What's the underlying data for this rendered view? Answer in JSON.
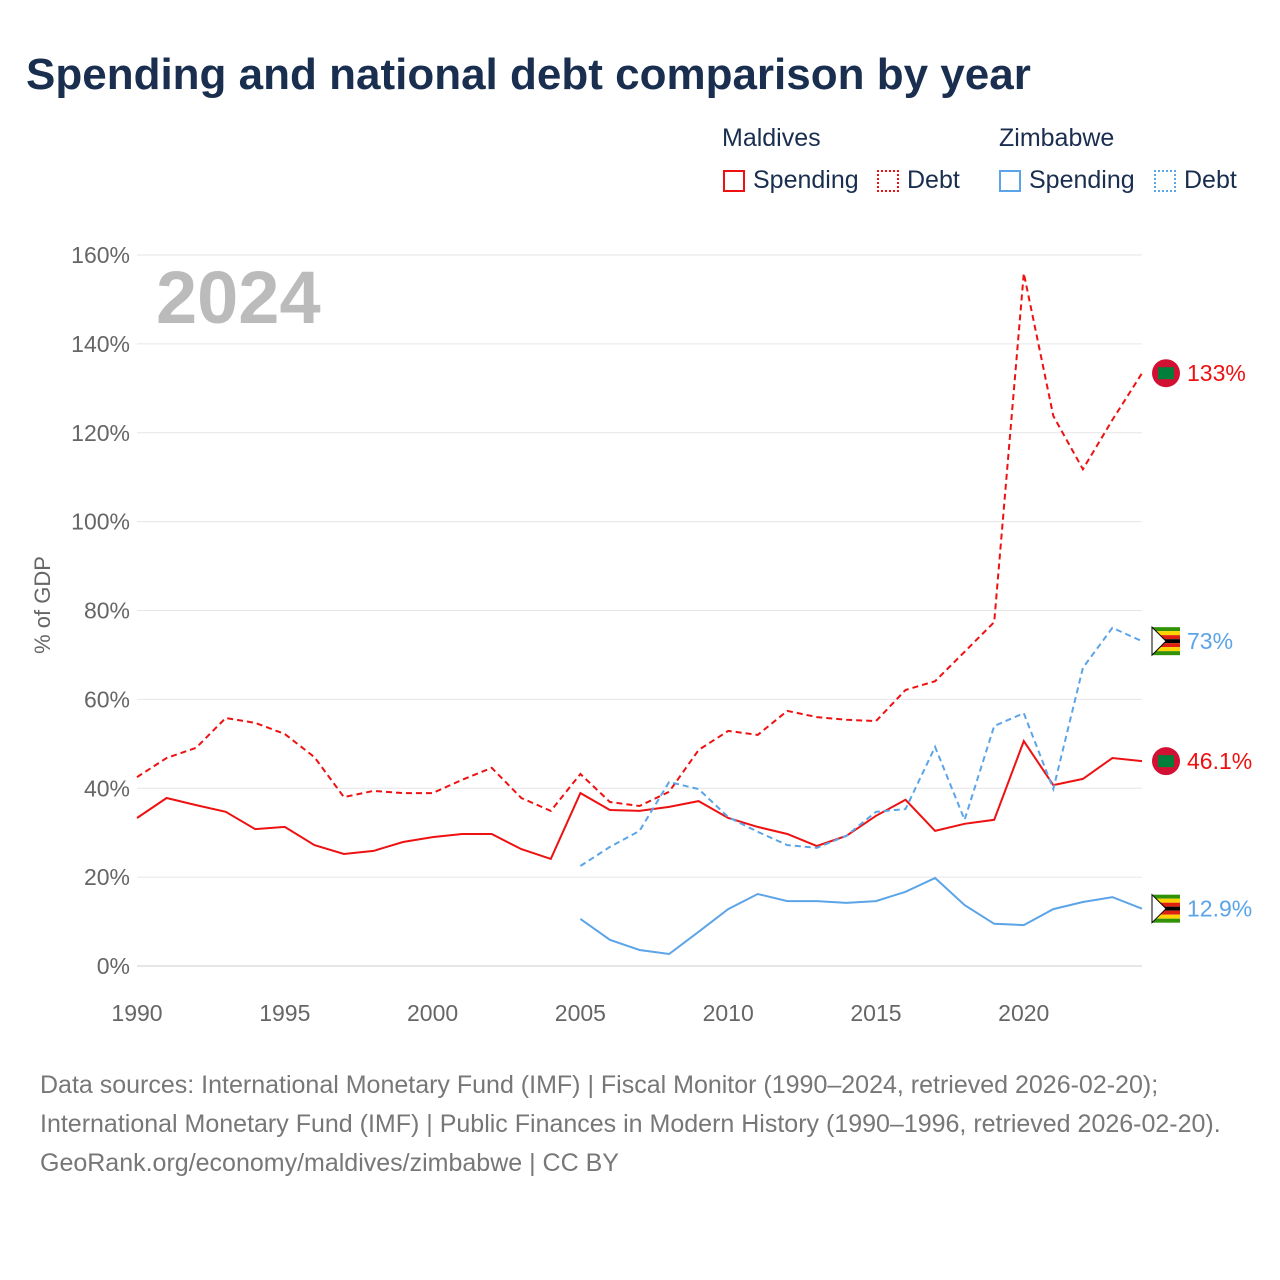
{
  "chart_data": {
    "type": "line",
    "title": "Spending and national debt comparison by year",
    "ylabel": "% of GDP",
    "ylim": [
      0,
      160
    ],
    "xlim": [
      1990,
      2024
    ],
    "yticks": [
      "0%",
      "20%",
      "40%",
      "60%",
      "80%",
      "100%",
      "120%",
      "140%",
      "160%"
    ],
    "ytick_values": [
      0,
      20,
      40,
      60,
      80,
      100,
      120,
      140,
      160
    ],
    "xticks": [
      "1990",
      "1995",
      "2000",
      "2005",
      "2010",
      "2015",
      "2020"
    ],
    "xtick_values": [
      1990,
      1995,
      2000,
      2005,
      2010,
      2015,
      2020
    ],
    "year_label": "2024",
    "grid": true,
    "legend": {
      "groups": [
        {
          "name": "Maldives",
          "items": [
            "Spending",
            "Debt"
          ]
        },
        {
          "name": "Zimbabwe",
          "items": [
            "Spending",
            "Debt"
          ]
        }
      ]
    },
    "series": [
      {
        "name": "Maldives Spending",
        "country": "Maldives",
        "color": "#ee1111",
        "dash": false,
        "start": 1990,
        "values": [
          33.3,
          37.8,
          36.2,
          34.7,
          30.8,
          31.3,
          27.2,
          25.2,
          25.9,
          27.9,
          29.0,
          29.7,
          29.7,
          26.3,
          24.1,
          38.9,
          35.1,
          34.9,
          35.8,
          37.1,
          33.3,
          31.3,
          29.7,
          27.0,
          29.3,
          33.8,
          37.4,
          30.4,
          32.0,
          32.9,
          50.6,
          40.7,
          42.1,
          46.8,
          46.1
        ],
        "end_label": "46.1%"
      },
      {
        "name": "Maldives Debt",
        "country": "Maldives",
        "color": "#ee1111",
        "dash": true,
        "start": 1990,
        "values": [
          42.5,
          46.8,
          49.1,
          55.8,
          54.7,
          52.2,
          47.0,
          38.0,
          39.4,
          38.9,
          38.9,
          41.9,
          44.6,
          37.8,
          34.9,
          43.2,
          36.9,
          36.0,
          39.2,
          48.6,
          52.9,
          52.0,
          57.4,
          56.0,
          55.4,
          55.1,
          62.1,
          64.1,
          70.7,
          77.4,
          155.9,
          123.8,
          111.8,
          122.9,
          133.4
        ],
        "end_label": "133%"
      },
      {
        "name": "Zimbabwe Spending",
        "country": "Zimbabwe",
        "color": "#5ba4e8",
        "dash": false,
        "start": 2005,
        "values": [
          10.6,
          5.9,
          3.6,
          2.7,
          7.7,
          12.8,
          16.2,
          14.6,
          14.6,
          14.2,
          14.6,
          16.7,
          19.8,
          13.7,
          9.5,
          9.2,
          12.8,
          14.4,
          15.5,
          12.9
        ],
        "end_label": "12.9%"
      },
      {
        "name": "Zimbabwe Debt",
        "country": "Zimbabwe",
        "color": "#5ba4e8",
        "dash": true,
        "start": 2005,
        "values": [
          22.5,
          26.8,
          30.4,
          41.4,
          39.8,
          33.5,
          30.2,
          27.2,
          26.6,
          29.3,
          34.7,
          35.3,
          49.3,
          32.9,
          54.0,
          56.9,
          39.8,
          67.1,
          76.1,
          73.1
        ],
        "end_label": "73%"
      }
    ]
  },
  "footer": {
    "sources": "Data sources: International Monetary Fund (IMF) | Fiscal Monitor (1990–2024, retrieved 2026-02-20); International Monetary Fund (IMF) | Public Finances in Modern History (1990–1996, retrieved 2026-02-20).",
    "credit": "GeoRank.org/economy/maldives/zimbabwe | CC BY"
  }
}
